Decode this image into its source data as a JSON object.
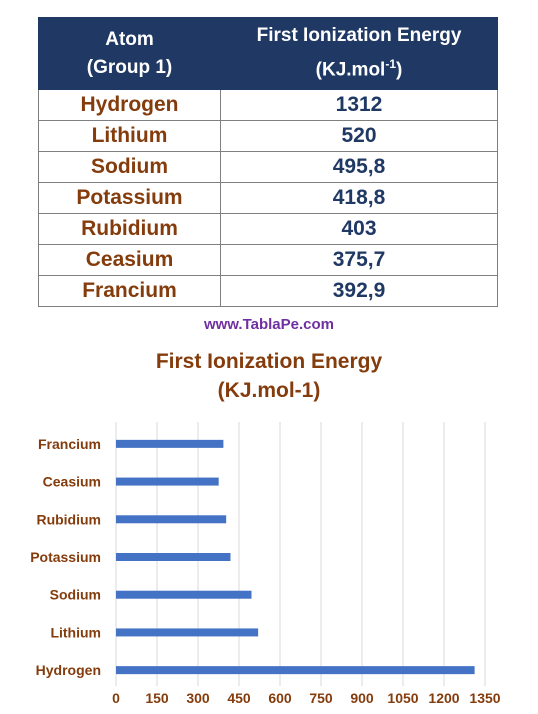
{
  "table": {
    "header": {
      "col1_line1": "Atom",
      "col1_line2": "(Group 1)",
      "col2_line1": "First Ionization Energy",
      "col2_unit": "(KJ.mol",
      "col2_sup": "-1",
      "col2_close": ")"
    },
    "rows": [
      {
        "atom": "Hydrogen",
        "energy": "1312"
      },
      {
        "atom": "Lithium",
        "energy": "520"
      },
      {
        "atom": "Sodium",
        "energy": "495,8"
      },
      {
        "atom": "Potassium",
        "energy": "418,8"
      },
      {
        "atom": "Rubidium",
        "energy": "403"
      },
      {
        "atom": "Ceasium",
        "energy": "375,7"
      },
      {
        "atom": "Francium",
        "energy": "392,9"
      }
    ]
  },
  "website": "www.TablaPe.com",
  "colors": {
    "header_bg": "#1f3864",
    "atom_text": "#843c0c",
    "value_text": "#1f3864",
    "bar": "#4472c4",
    "url_text": "#7030a0"
  },
  "chart_data": {
    "type": "bar",
    "orientation": "horizontal",
    "title_line1": "First Ionization Energy",
    "title_line2": "(KJ.mol-1)",
    "categories": [
      "Francium",
      "Ceasium",
      "Rubidium",
      "Potassium",
      "Sodium",
      "Lithium",
      "Hydrogen"
    ],
    "values": [
      392.9,
      375.7,
      403,
      418.8,
      495.8,
      520,
      1312
    ],
    "xlim": [
      0,
      1350
    ],
    "xticks": [
      "0",
      "150",
      "300",
      "450",
      "600",
      "750",
      "900",
      "1050",
      "1200",
      "1350"
    ],
    "grid": true,
    "xlabel": "",
    "ylabel": ""
  }
}
